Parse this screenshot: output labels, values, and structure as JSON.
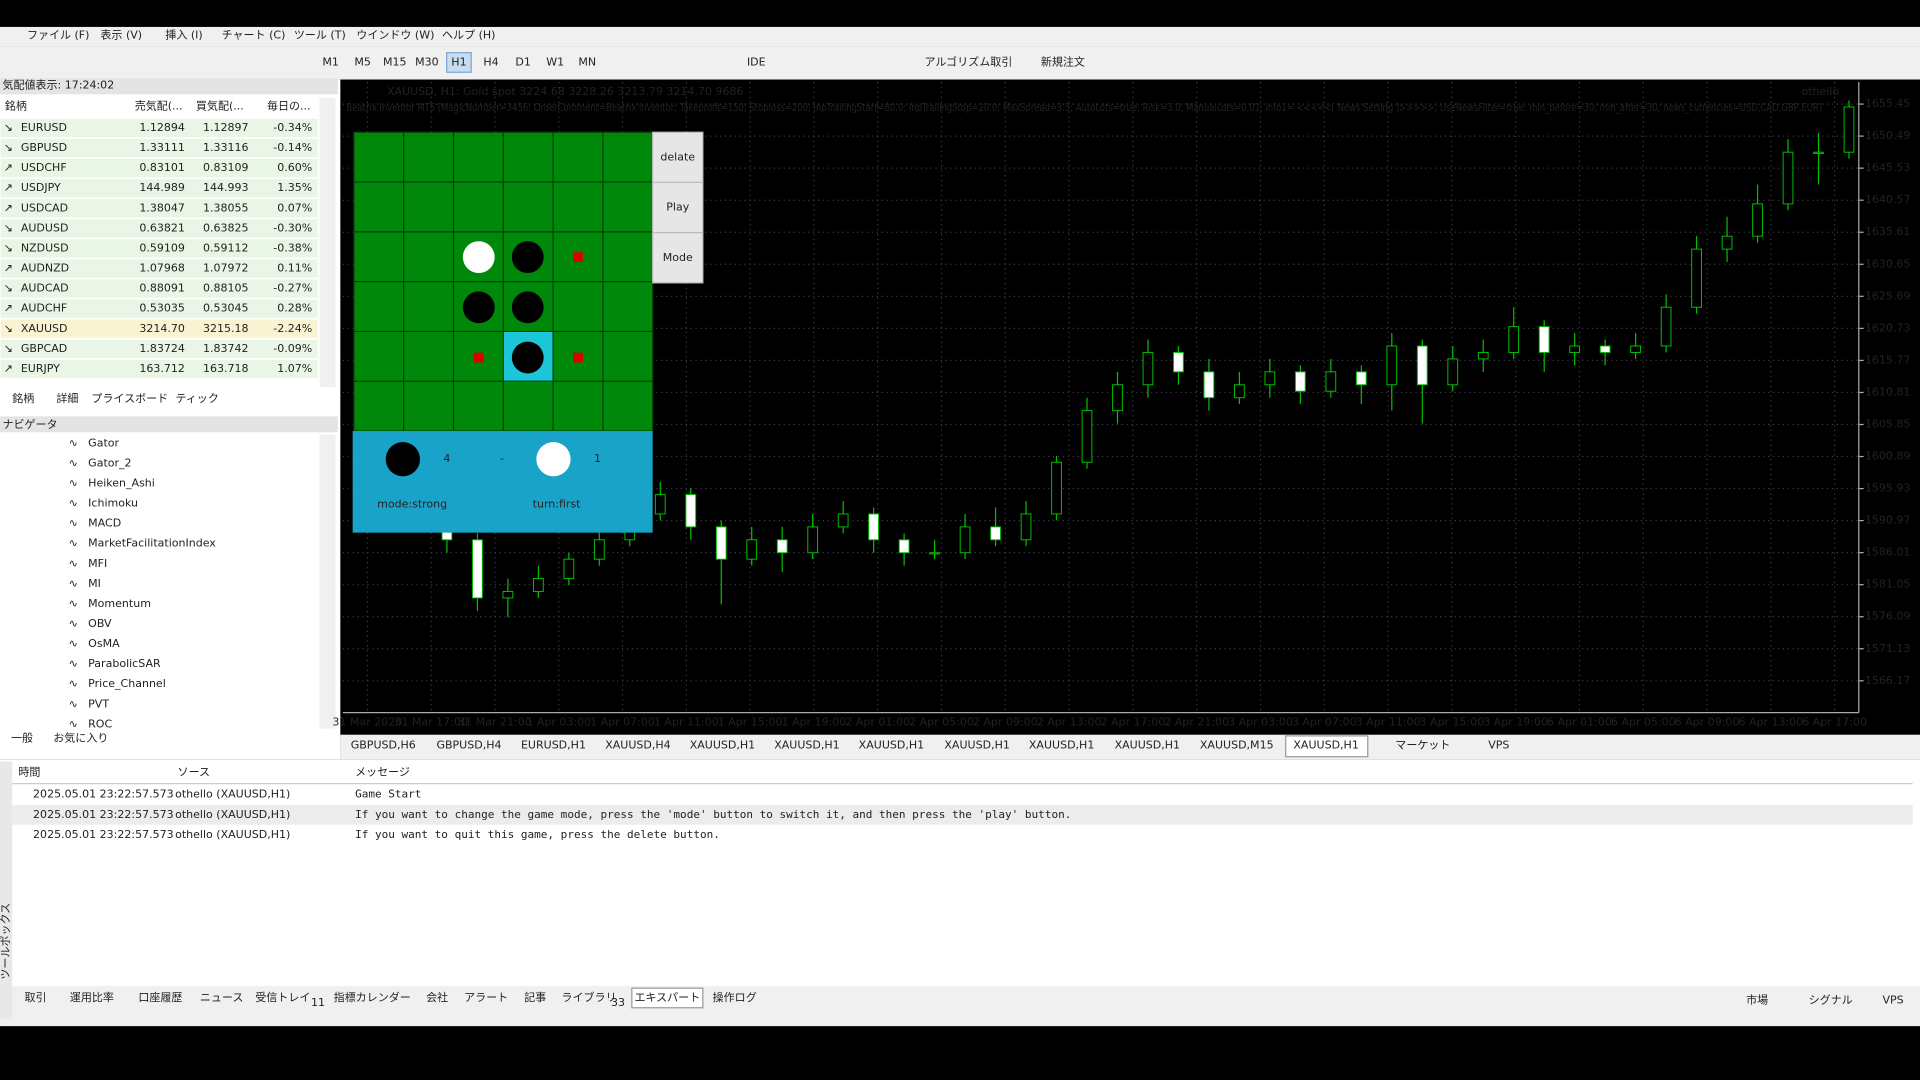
{
  "menu": [
    "ファイル (F)",
    "表示 (V)",
    "挿入 (I)",
    "チャート (C)",
    "ツール (T)",
    "ウインドウ (W)",
    "ヘルプ (H)"
  ],
  "timeframes": [
    "M1",
    "M5",
    "M15",
    "M30",
    "H1",
    "H4",
    "D1",
    "W1",
    "MN"
  ],
  "active_timeframe": "H1",
  "toolbar_labels": [
    "IDE",
    "アルゴリズム取引",
    "新規注文"
  ],
  "market_watch": {
    "title": "気配値表示: 17:24:02",
    "headers": [
      "銘柄",
      "売気配(...",
      "買気配(...",
      "毎日の..."
    ],
    "rows": [
      [
        "EURUSD",
        "1.12894",
        "1.12897",
        "-0.34%"
      ],
      [
        "GBPUSD",
        "1.33111",
        "1.33116",
        "-0.14%"
      ],
      [
        "USDCHF",
        "0.83101",
        "0.83109",
        "0.60%"
      ],
      [
        "USDJPY",
        "144.989",
        "144.993",
        "1.35%"
      ],
      [
        "USDCAD",
        "1.38047",
        "1.38055",
        "0.07%"
      ],
      [
        "AUDUSD",
        "0.63821",
        "0.63825",
        "-0.30%"
      ],
      [
        "NZDUSD",
        "0.59109",
        "0.59112",
        "-0.38%"
      ],
      [
        "AUDNZD",
        "1.07968",
        "1.07972",
        "0.11%"
      ],
      [
        "AUDCAD",
        "0.88091",
        "0.88105",
        "-0.27%"
      ],
      [
        "AUDCHF",
        "0.53035",
        "0.53045",
        "0.28%"
      ],
      [
        "XAUUSD",
        "3214.70",
        "3215.18",
        "-2.24%"
      ],
      [
        "GBPCAD",
        "1.83724",
        "1.83742",
        "-0.09%"
      ],
      [
        "EURJPY",
        "163.712",
        "163.718",
        "1.07%"
      ]
    ],
    "tabs": [
      "銘柄",
      "詳細",
      "プライスボード",
      "ティック"
    ]
  },
  "navigator": {
    "title": "ナビゲータ",
    "items": [
      "Gator",
      "Gator_2",
      "Heiken_Ashi",
      "Ichimoku",
      "MACD",
      "MarketFacilitationIndex",
      "MFI",
      "MI",
      "Momentum",
      "OBV",
      "OsMA",
      "ParabolicSAR",
      "Price_Channel",
      "PVT",
      "ROC"
    ],
    "tabs": [
      "一般",
      "お気に入り"
    ]
  },
  "chart": {
    "header": "XAUUSD, H1:  Gold spot  3224.68 3228.26 3213.79 3214.70  9686",
    "ea_line": "Beatrix Inventor MT5 [MagicNumber=3456; OrderComment=Beatrix Inventor; Takeprofit=150; Stoploss=200; InpTrailingStart=80.0; InpTrailingStop=20.0; MaxSpread=3.5; AutoLots=true; Risk=3.0; ManualLots=0.01; info1= <<<<<[  News Setting  ]>>>>>; UseNewsFilter=true; min_before=30; min_after=30; news_currencies=USD,CAD,GBP,EUR]",
    "expert_label": "othello",
    "type": "candlestick",
    "bull_color": "#000000",
    "bear_color": "#ffffff",
    "wick_color": "#00c000",
    "grid": true,
    "ylim": [
      1566.17,
      1655.45
    ],
    "yticks": [
      1566.17,
      1571.13,
      1576.09,
      1581.05,
      1586.01,
      1590.97,
      1595.93,
      1600.89,
      1605.85,
      1610.81,
      1615.77,
      1620.73,
      1625.69,
      1630.65,
      1635.61,
      1640.57,
      1645.53,
      1650.49,
      1655.45
    ],
    "time_labels": [
      "31 Mar 2020",
      "31 Mar 17:00",
      "31 Mar 21:00",
      "1 Apr 03:00",
      "1 Apr 07:00",
      "1 Apr 11:00",
      "1 Apr 15:00",
      "1 Apr 19:00",
      "2 Apr 01:00",
      "2 Apr 05:00",
      "2 Apr 09:00",
      "2 Apr 13:00",
      "2 Apr 17:00",
      "2 Apr 21:00",
      "3 Apr 03:00",
      "3 Apr 07:00",
      "3 Apr 11:00",
      "3 Apr 15:00",
      "3 Apr 19:00",
      "6 Apr 01:00",
      "6 Apr 05:00",
      "6 Apr 09:00",
      "6 Apr 13:00",
      "6 Apr 17:00"
    ],
    "candles": [
      [
        1592,
        1594,
        1586,
        1588
      ],
      [
        1588,
        1589,
        1577,
        1579
      ],
      [
        1579,
        1582,
        1576,
        1580
      ],
      [
        1580,
        1584,
        1579,
        1582
      ],
      [
        1582,
        1586,
        1581,
        1585
      ],
      [
        1585,
        1590,
        1584,
        1588
      ],
      [
        1588,
        1593,
        1587,
        1592
      ],
      [
        1592,
        1597,
        1591,
        1595
      ],
      [
        1595,
        1596,
        1588,
        1590
      ],
      [
        1590,
        1591,
        1578,
        1585
      ],
      [
        1585,
        1590,
        1584,
        1588
      ],
      [
        1588,
        1590,
        1583,
        1586
      ],
      [
        1586,
        1592,
        1585,
        1590
      ],
      [
        1590,
        1594,
        1589,
        1592
      ],
      [
        1592,
        1593,
        1586,
        1588
      ],
      [
        1588,
        1589,
        1584,
        1586
      ],
      [
        1586,
        1588,
        1585,
        1586
      ],
      [
        1586,
        1592,
        1585,
        1590
      ],
      [
        1590,
        1593,
        1587,
        1588
      ],
      [
        1588,
        1594,
        1587,
        1592
      ],
      [
        1592,
        1601,
        1591,
        1600
      ],
      [
        1600,
        1610,
        1599,
        1608
      ],
      [
        1608,
        1614,
        1606,
        1612
      ],
      [
        1612,
        1619,
        1610,
        1617
      ],
      [
        1617,
        1618,
        1612,
        1614
      ],
      [
        1614,
        1616,
        1608,
        1610
      ],
      [
        1610,
        1614,
        1609,
        1612
      ],
      [
        1612,
        1616,
        1610,
        1614
      ],
      [
        1614,
        1615,
        1609,
        1611
      ],
      [
        1611,
        1616,
        1610,
        1614
      ],
      [
        1614,
        1615,
        1609,
        1612
      ],
      [
        1612,
        1620,
        1608,
        1618
      ],
      [
        1618,
        1619,
        1606,
        1612
      ],
      [
        1612,
        1618,
        1611,
        1616
      ],
      [
        1616,
        1619,
        1614,
        1617
      ],
      [
        1617,
        1624,
        1616,
        1621
      ],
      [
        1621,
        1622,
        1614,
        1617
      ],
      [
        1617,
        1620,
        1615,
        1618
      ],
      [
        1618,
        1619,
        1615,
        1617
      ],
      [
        1617,
        1620,
        1616,
        1618
      ],
      [
        1618,
        1626,
        1617,
        1624
      ],
      [
        1624,
        1635,
        1623,
        1633
      ],
      [
        1633,
        1638,
        1631,
        1635
      ],
      [
        1635,
        1643,
        1634,
        1640
      ],
      [
        1640,
        1650,
        1639,
        1648
      ],
      [
        1648,
        1651,
        1643,
        1648
      ],
      [
        1648,
        1656,
        1647,
        1655
      ]
    ]
  },
  "game": {
    "buttons": [
      "delate",
      "Play",
      "Mode"
    ],
    "score_black": "4",
    "score_sep": "-",
    "score_white": "1",
    "mode": "mode:strong",
    "turn": "turn:first"
  },
  "chart_tabs": [
    "GBPUSD,H6",
    "GBPUSD,H4",
    "EURUSD,H1",
    "XAUUSD,H4",
    "XAUUSD,H1",
    "XAUUSD,H1",
    "XAUUSD,H1",
    "XAUUSD,H1",
    "XAUUSD,H1",
    "XAUUSD,H1",
    "XAUUSD,M15",
    "XAUUSD,H1",
    "マーケット",
    "VPS"
  ],
  "log": {
    "headers": [
      "時間",
      "ソース",
      "メッセージ"
    ],
    "rows": [
      [
        "2025.05.01 23:22:57.573",
        "othello (XAUUSD,H1)",
        "Game Start"
      ],
      [
        "2025.05.01 23:22:57.573",
        "othello (XAUUSD,H1)",
        "If you want to change the game mode, press the 'mode' button to switch it, and then press the 'play' button."
      ],
      [
        "2025.05.01 23:22:57.573",
        "othello (XAUUSD,H1)",
        "If you want to quit this game, press the delete button."
      ]
    ]
  },
  "toolbox_label": "ツールボックス",
  "bottom_tabs": [
    "取引",
    "運用比率",
    "口座履歴",
    "ニュース",
    "受信トレイ",
    "指標カレンダー",
    "会社",
    "アラート",
    "記事",
    "ライブラリ",
    "エキスパート",
    "操作ログ"
  ],
  "badges": {
    "inbox": "11",
    "library": "33"
  },
  "active_bottom_tab": "エキスパート",
  "status": [
    "市場",
    "シグナル",
    "VPS"
  ]
}
